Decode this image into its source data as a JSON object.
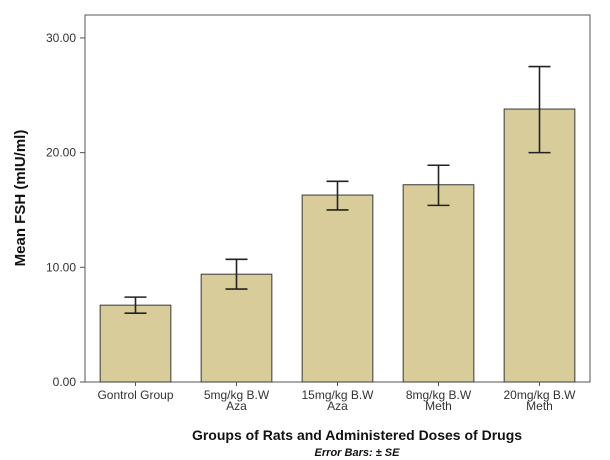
{
  "chart_data": {
    "type": "bar",
    "categories": [
      [
        "Gontrol Group"
      ],
      [
        "5mg/kg B.W",
        "Aza"
      ],
      [
        "15mg/kg B.W",
        "Aza"
      ],
      [
        "8mg/kg B.W",
        "Meth"
      ],
      [
        "20mg/kg B.W",
        "Meth"
      ]
    ],
    "values": [
      6.7,
      9.4,
      16.3,
      17.2,
      23.8
    ],
    "error_low": [
      6.0,
      8.1,
      15.0,
      15.4,
      20.0
    ],
    "error_high": [
      7.4,
      10.7,
      17.5,
      18.9,
      27.5
    ],
    "xlabel": "Groups of Rats and Administered Doses of Drugs",
    "ylabel": "Mean FSH (mIU/ml)",
    "note": "Error Bars: ± SE",
    "ylim": [
      0,
      32
    ],
    "yticks": [
      0,
      10,
      20,
      30
    ],
    "ytick_labels": [
      "0.00",
      "10.00",
      "20.00",
      "30.00"
    ],
    "grid": false,
    "bar_color": "#d8cc9a",
    "bar_edge_color": "#3a3a3a"
  }
}
